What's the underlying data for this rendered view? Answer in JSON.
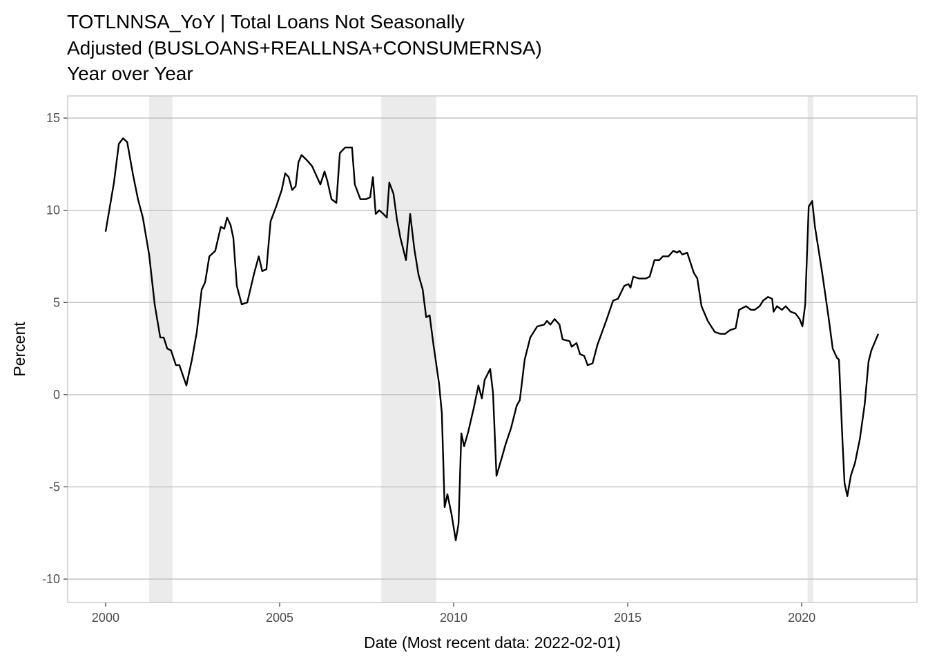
{
  "chart_data": {
    "type": "line",
    "title": [
      "TOTLNNSA_YoY | Total Loans Not Seasonally",
      "Adjusted (BUSLOANS+REALLNSA+CONSUMERNSA)",
      "Year over Year"
    ],
    "x_label": "Date (Most recent data: 2022-02-01)",
    "y_label": "Percent",
    "xlim": [
      1998.91,
      2023.31
    ],
    "ylim": [
      -11.27,
      16.2
    ],
    "xticks": [
      2000,
      2005,
      2010,
      2015,
      2020
    ],
    "yticks": [
      -10,
      -5,
      0,
      5,
      10,
      15
    ],
    "grid": true,
    "shaded_periods": [
      [
        2001.25,
        2001.92
      ],
      [
        2007.92,
        2009.5
      ],
      [
        2020.17,
        2020.33
      ]
    ],
    "shade_color": "#ebebeb",
    "x": [
      2000.0,
      2000.24,
      2000.38,
      2000.5,
      2000.62,
      2000.79,
      2000.93,
      2001.07,
      2001.25,
      2001.41,
      2001.57,
      2001.67,
      2001.77,
      2001.88,
      2002.02,
      2002.12,
      2002.32,
      2002.48,
      2002.62,
      2002.76,
      2002.86,
      2002.98,
      2003.15,
      2003.31,
      2003.41,
      2003.49,
      2003.59,
      2003.67,
      2003.77,
      2003.91,
      2004.07,
      2004.27,
      2004.4,
      2004.5,
      2004.62,
      2004.74,
      2004.9,
      2005.06,
      2005.16,
      2005.26,
      2005.36,
      2005.46,
      2005.54,
      2005.63,
      2005.79,
      2005.93,
      2006.05,
      2006.17,
      2006.29,
      2006.37,
      2006.49,
      2006.63,
      2006.73,
      2006.88,
      2007.08,
      2007.16,
      2007.32,
      2007.48,
      2007.6,
      2007.68,
      2007.76,
      2007.86,
      2007.98,
      2008.08,
      2008.15,
      2008.27,
      2008.37,
      2008.47,
      2008.63,
      2008.75,
      2008.87,
      2008.99,
      2009.11,
      2009.21,
      2009.31,
      2009.42,
      2009.58,
      2009.66,
      2009.74,
      2009.82,
      2009.94,
      2010.06,
      2010.14,
      2010.22,
      2010.3,
      2010.42,
      2010.58,
      2010.71,
      2010.81,
      2010.89,
      2011.05,
      2011.13,
      2011.23,
      2011.37,
      2011.49,
      2011.65,
      2011.81,
      2011.9,
      2012.04,
      2012.2,
      2012.4,
      2012.6,
      2012.68,
      2012.78,
      2012.9,
      2013.04,
      2013.13,
      2013.33,
      2013.39,
      2013.53,
      2013.63,
      2013.75,
      2013.85,
      2013.99,
      2014.13,
      2014.38,
      2014.58,
      2014.72,
      2014.9,
      2015.02,
      2015.08,
      2015.16,
      2015.32,
      2015.52,
      2015.63,
      2015.77,
      2015.91,
      2016.01,
      2016.17,
      2016.31,
      2016.41,
      2016.49,
      2016.57,
      2016.71,
      2016.9,
      2017.0,
      2017.12,
      2017.3,
      2017.5,
      2017.66,
      2017.8,
      2017.94,
      2018.1,
      2018.2,
      2018.3,
      2018.4,
      2018.54,
      2018.65,
      2018.79,
      2018.89,
      2019.03,
      2019.15,
      2019.19,
      2019.29,
      2019.43,
      2019.54,
      2019.68,
      2019.82,
      2019.94,
      2020.02,
      2020.1,
      2020.2,
      2020.3,
      2020.38,
      2020.58,
      2020.77,
      2020.89,
      2021.01,
      2021.07,
      2021.17,
      2021.23,
      2021.31,
      2021.41,
      2021.53,
      2021.67,
      2021.81,
      2021.92,
      2022.0,
      2022.2
    ],
    "series": [
      {
        "name": "TOTLNNSA_YoY",
        "color": "#000000",
        "values": [
          8.84,
          11.5,
          13.6,
          13.9,
          13.7,
          11.9,
          10.6,
          9.6,
          7.6,
          4.9,
          3.1,
          3.1,
          2.5,
          2.4,
          1.6,
          1.6,
          0.5,
          1.9,
          3.4,
          5.7,
          6.1,
          7.5,
          7.8,
          9.1,
          9.0,
          9.6,
          9.2,
          8.5,
          5.9,
          4.9,
          5.0,
          6.6,
          7.5,
          6.7,
          6.8,
          9.4,
          10.2,
          11.1,
          12.0,
          11.8,
          11.1,
          11.3,
          12.6,
          13.0,
          12.7,
          12.4,
          11.9,
          11.4,
          12.1,
          11.6,
          10.6,
          10.4,
          13.1,
          13.4,
          13.4,
          11.4,
          10.6,
          10.6,
          10.7,
          11.8,
          9.8,
          10.0,
          9.8,
          9.6,
          11.5,
          10.9,
          9.5,
          8.5,
          7.3,
          9.8,
          7.9,
          6.5,
          5.7,
          4.2,
          4.3,
          2.7,
          0.6,
          -1.0,
          -6.1,
          -5.4,
          -6.5,
          -7.9,
          -7.0,
          -2.1,
          -2.8,
          -2.0,
          -0.7,
          0.5,
          -0.2,
          0.8,
          1.4,
          0.1,
          -4.4,
          -3.5,
          -2.7,
          -1.8,
          -0.6,
          -0.3,
          1.9,
          3.1,
          3.7,
          3.8,
          4.0,
          3.8,
          4.1,
          3.8,
          3.0,
          2.9,
          2.6,
          2.8,
          2.2,
          2.1,
          1.6,
          1.7,
          2.7,
          4.0,
          5.1,
          5.2,
          5.9,
          6.0,
          5.8,
          6.4,
          6.3,
          6.3,
          6.4,
          7.3,
          7.3,
          7.5,
          7.5,
          7.8,
          7.7,
          7.8,
          7.6,
          7.7,
          6.6,
          6.3,
          4.8,
          4.0,
          3.4,
          3.3,
          3.3,
          3.5,
          3.6,
          4.6,
          4.7,
          4.8,
          4.6,
          4.6,
          4.8,
          5.1,
          5.3,
          5.2,
          4.5,
          4.8,
          4.6,
          4.8,
          4.5,
          4.4,
          4.1,
          3.7,
          4.9,
          10.2,
          10.5,
          9.1,
          6.7,
          4.2,
          2.5,
          2.0,
          1.9,
          -2.5,
          -4.8,
          -5.5,
          -4.4,
          -3.7,
          -2.4,
          -0.5,
          1.8,
          2.4,
          3.3
        ]
      }
    ]
  }
}
